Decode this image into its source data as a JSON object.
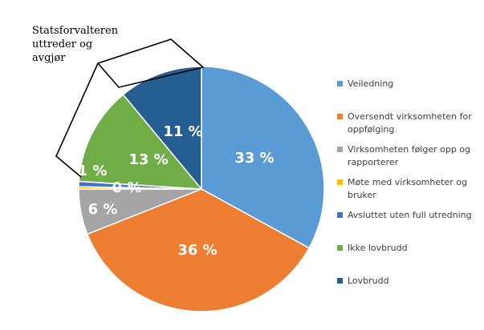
{
  "chart_data": {
    "type": "pie",
    "title": "",
    "slices": [
      {
        "label": "Veiledning",
        "value": 33,
        "display": "33 %",
        "color": "#5b9bd5"
      },
      {
        "label": "Oversendt virksomheten for oppfølging",
        "value": 36,
        "display": "36 %",
        "color": "#ed7d31"
      },
      {
        "label": "Virksomheten følger opp og rapporterer",
        "value": 6,
        "display": "6 %",
        "color": "#a5a5a5"
      },
      {
        "label": "Møte med virksomheter og bruker",
        "value": 0.3,
        "display": "0 %",
        "color": "#ffc000"
      },
      {
        "label": "Avsluttet uten full utredning",
        "value": 0.7,
        "display": "1 %",
        "color": "#4472c4"
      },
      {
        "label": "Ikke lovbrudd",
        "value": 13,
        "display": "13 %",
        "color": "#70ad47"
      },
      {
        "label": "Lovbrudd",
        "value": 11,
        "display": "11 %",
        "color": "#255e91"
      }
    ],
    "legend_position": "right"
  },
  "annotation": {
    "lines": [
      "Statsforvalteren",
      "uttreder og",
      "avgjør"
    ]
  }
}
